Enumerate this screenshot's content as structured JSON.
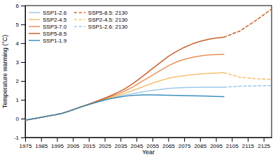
{
  "chart_data": {
    "type": "line",
    "title": "",
    "xlabel": "Year",
    "ylabel": "Temperature warming (°C)",
    "xlim": [
      1975,
      2130
    ],
    "xticks": [
      1975,
      1985,
      1995,
      2005,
      2015,
      2025,
      2035,
      2045,
      2055,
      2065,
      2075,
      2085,
      2095,
      2105,
      2115,
      2125
    ],
    "ylim": [
      -1,
      6
    ],
    "yticks": [
      -1,
      0,
      1,
      2,
      3,
      4,
      5,
      6
    ],
    "grid": false,
    "legend": "upper left",
    "series": [
      {
        "name": "SSP1-2.6",
        "color": "#9ec8e8",
        "line_style": "solid",
        "x": [
          1975,
          1978,
          1982,
          1986,
          1990,
          1994,
          1998,
          2002,
          2006,
          2010,
          2014,
          2018,
          2022,
          2026,
          2030,
          2034,
          2038,
          2042,
          2046,
          2050,
          2055,
          2060,
          2065,
          2070,
          2075,
          2080,
          2085,
          2090,
          2095,
          2100
        ],
        "values": [
          -0.08,
          -0.04,
          0.02,
          0.08,
          0.15,
          0.2,
          0.28,
          0.38,
          0.5,
          0.62,
          0.72,
          0.83,
          0.93,
          1.02,
          1.1,
          1.18,
          1.25,
          1.32,
          1.38,
          1.44,
          1.5,
          1.55,
          1.6,
          1.63,
          1.65,
          1.66,
          1.67,
          1.67,
          1.67,
          1.67
        ]
      },
      {
        "name": "SSP2-4.5",
        "color": "#f5c070",
        "line_style": "solid",
        "x": [
          1975,
          1978,
          1982,
          1986,
          1990,
          1994,
          1998,
          2002,
          2006,
          2010,
          2014,
          2018,
          2022,
          2026,
          2030,
          2034,
          2038,
          2042,
          2046,
          2050,
          2055,
          2060,
          2065,
          2070,
          2075,
          2080,
          2085,
          2090,
          2095,
          2100
        ],
        "values": [
          -0.08,
          -0.04,
          0.02,
          0.08,
          0.15,
          0.2,
          0.28,
          0.38,
          0.5,
          0.62,
          0.72,
          0.83,
          0.94,
          1.04,
          1.14,
          1.24,
          1.35,
          1.47,
          1.59,
          1.72,
          1.88,
          2.02,
          2.14,
          2.22,
          2.28,
          2.33,
          2.37,
          2.4,
          2.42,
          2.44
        ]
      },
      {
        "name": "SSP3-7.0",
        "color": "#e8915a",
        "line_style": "solid",
        "x": [
          1975,
          1978,
          1982,
          1986,
          1990,
          1994,
          1998,
          2002,
          2006,
          2010,
          2014,
          2018,
          2022,
          2026,
          2030,
          2034,
          2038,
          2042,
          2046,
          2050,
          2055,
          2060,
          2065,
          2070,
          2075,
          2080,
          2085,
          2090,
          2095,
          2100
        ],
        "values": [
          -0.08,
          -0.04,
          0.02,
          0.08,
          0.15,
          0.2,
          0.28,
          0.38,
          0.5,
          0.62,
          0.72,
          0.83,
          0.96,
          1.08,
          1.2,
          1.33,
          1.48,
          1.65,
          1.85,
          2.05,
          2.3,
          2.56,
          2.8,
          3.0,
          3.15,
          3.25,
          3.32,
          3.38,
          3.4,
          3.42
        ]
      },
      {
        "name": "SSP5-8.5",
        "color": "#c8612a",
        "line_style": "solid",
        "x": [
          1975,
          1978,
          1982,
          1986,
          1990,
          1994,
          1998,
          2002,
          2006,
          2010,
          2014,
          2018,
          2022,
          2026,
          2030,
          2034,
          2038,
          2042,
          2046,
          2050,
          2055,
          2060,
          2065,
          2070,
          2075,
          2080,
          2085,
          2090,
          2095,
          2100
        ],
        "values": [
          -0.08,
          -0.04,
          0.02,
          0.08,
          0.15,
          0.2,
          0.28,
          0.38,
          0.5,
          0.62,
          0.74,
          0.86,
          0.99,
          1.12,
          1.26,
          1.42,
          1.6,
          1.82,
          2.06,
          2.32,
          2.65,
          2.98,
          3.3,
          3.56,
          3.78,
          3.96,
          4.1,
          4.2,
          4.28,
          4.32
        ]
      },
      {
        "name": "SSP1-1.9",
        "color": "#3a8fbf",
        "line_style": "solid",
        "x": [
          1975,
          1978,
          1982,
          1986,
          1990,
          1994,
          1998,
          2002,
          2006,
          2010,
          2014,
          2018,
          2022,
          2026,
          2030,
          2034,
          2038,
          2042,
          2046,
          2050,
          2055,
          2060,
          2065,
          2070,
          2075,
          2080,
          2085,
          2090,
          2095,
          2100
        ],
        "values": [
          -0.08,
          -0.04,
          0.02,
          0.08,
          0.15,
          0.2,
          0.28,
          0.38,
          0.5,
          0.62,
          0.72,
          0.82,
          0.92,
          1.01,
          1.08,
          1.14,
          1.19,
          1.23,
          1.25,
          1.26,
          1.26,
          1.25,
          1.24,
          1.23,
          1.22,
          1.21,
          1.2,
          1.19,
          1.18,
          1.17
        ]
      },
      {
        "name": "SSP5-8.5: 2130",
        "color": "#c8612a",
        "line_style": "dashed",
        "x": [
          2100,
          2110,
          2120,
          2130
        ],
        "values": [
          4.32,
          4.65,
          5.2,
          5.82
        ]
      },
      {
        "name": "SSP2-4.5: 2130",
        "color": "#f5c070",
        "line_style": "dashed",
        "x": [
          2100,
          2110,
          2120,
          2130
        ],
        "values": [
          2.44,
          2.2,
          2.12,
          2.08
        ]
      },
      {
        "name": "SSP1-2.6: 2130",
        "color": "#9ec8e8",
        "line_style": "dashed",
        "x": [
          2100,
          2110,
          2120,
          2130
        ],
        "values": [
          1.67,
          1.72,
          1.74,
          1.75
        ]
      }
    ]
  }
}
